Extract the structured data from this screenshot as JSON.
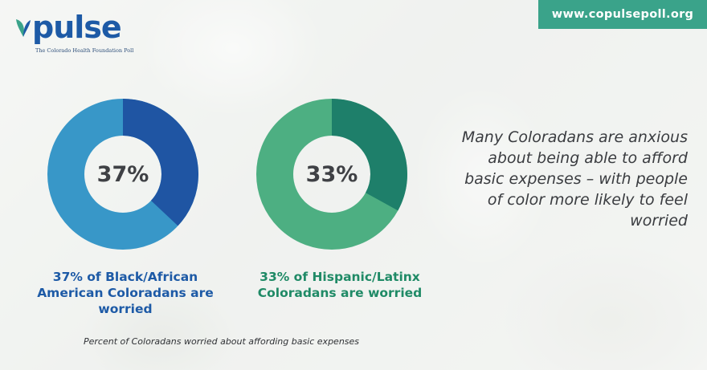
{
  "brand": {
    "logo_text": "pulse",
    "tagline": "The Colorado Health Foundation Poll",
    "url": "www.copulsepoll.org"
  },
  "headline": "Many Coloradans are anxious about being able to afford basic expenses – with people of color more likely to feel worried",
  "footnote": "Percent of Coloradans worried about affording basic expenses",
  "colors": {
    "blue_filled": "#1f55a3",
    "blue_track": "#3897c8",
    "green_filled": "#1e7f6a",
    "green_track": "#4daf82",
    "url_bg": "#3aa38a"
  },
  "chart_data": [
    {
      "type": "pie",
      "variant": "donut",
      "label": "37%",
      "value": 37,
      "caption": "37% of Black/African American Coloradans are worried"
    },
    {
      "type": "pie",
      "variant": "donut",
      "label": "33%",
      "value": 33,
      "caption": "33% of Hispanic/Latinx Coloradans are worried"
    }
  ]
}
